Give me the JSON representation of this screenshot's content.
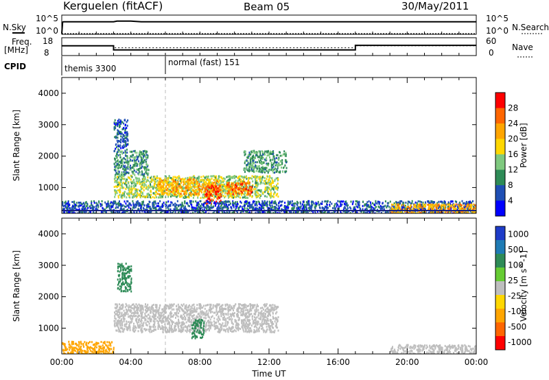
{
  "header": {
    "station": "Kerguelen (fitACF)",
    "beam": "Beam 05",
    "date": "30/May/2011"
  },
  "nsky_panel": {
    "left_label": "N.Sky",
    "right_label": "N.Search",
    "left_ticks": [
      "10^5",
      "10^0"
    ],
    "right_ticks": [
      "10^5",
      "10^0"
    ]
  },
  "freq_panel": {
    "left_label_1": "Freq.",
    "left_label_2": "[MHz]",
    "right_label": "Nave",
    "left_ticks": [
      "18",
      "8"
    ],
    "right_ticks": [
      "60",
      "0"
    ]
  },
  "cpid_panel": {
    "label": "CPID",
    "modes": [
      {
        "name": "themis 3300",
        "start_hour": 0
      },
      {
        "name": "normal (fast) 151",
        "start_hour": 6
      }
    ]
  },
  "colors": {
    "power_scale": [
      "#0000ff",
      "#1f4fb4",
      "#2e8b57",
      "#7fc97f",
      "#ffd700",
      "#ffa500",
      "#ff6600",
      "#ff0000"
    ],
    "velocity_scale": [
      "#1e3cc8",
      "#1f7bb4",
      "#2e8b57",
      "#66cc33",
      "#bebebe",
      "#ffd700",
      "#ffa500",
      "#ff6600",
      "#ff0000"
    ],
    "ground_scatter": "#bebebe"
  },
  "chart_data": [
    {
      "type": "line",
      "name": "nsky",
      "x_range": [
        0,
        24
      ],
      "series": [
        {
          "name": "N.Sky",
          "x": [
            0.0,
            0.05,
            0.1,
            3.0,
            3.2,
            4.0,
            4.6,
            8.0,
            12.0,
            17.0,
            24.0
          ],
          "y": [
            0.0,
            3.5,
            3.6,
            3.6,
            3.8,
            3.8,
            3.6,
            3.6,
            3.6,
            3.6,
            3.6
          ]
        },
        {
          "name": "N.Search",
          "x": [
            0,
            24
          ],
          "y": [
            0,
            0
          ]
        }
      ]
    },
    {
      "type": "line",
      "name": "frequency",
      "x_range": [
        0,
        24
      ],
      "ylim": [
        8,
        18
      ],
      "series": [
        {
          "name": "Freq.",
          "x": [
            0,
            3.0,
            3.0,
            17.0,
            17.0,
            24.0
          ],
          "y": [
            13.5,
            13.5,
            11.0,
            11.0,
            13.8,
            13.8
          ]
        },
        {
          "name": "Nave",
          "x": [
            0,
            3.0,
            3.0,
            17.0,
            17.0,
            24.0
          ],
          "y": [
            33,
            33,
            26,
            26,
            33,
            33
          ]
        }
      ]
    },
    {
      "type": "heatmap",
      "name": "power",
      "xlabel": "",
      "ylabel": "Slant Range [km]",
      "xlim": [
        0,
        24
      ],
      "ylim": [
        180,
        4500
      ],
      "y_ticks": [
        "1000",
        "2000",
        "3000",
        "4000"
      ],
      "colorbar": {
        "label": "Power [dB]",
        "ticks": [
          "4",
          "8",
          "12",
          "16",
          "20",
          "24",
          "28"
        ],
        "range": [
          0,
          30
        ]
      },
      "regions": [
        {
          "x": [
            3.0,
            3.8
          ],
          "y": [
            2200,
            3200
          ],
          "value": 6
        },
        {
          "x": [
            3.0,
            5.0
          ],
          "y": [
            1400,
            2200
          ],
          "value": 10
        },
        {
          "x": [
            3.0,
            12.5
          ],
          "y": [
            700,
            1400
          ],
          "value": 14
        },
        {
          "x": [
            5.5,
            9.0
          ],
          "y": [
            800,
            1300
          ],
          "value": 20
        },
        {
          "x": [
            8.2,
            9.2
          ],
          "y": [
            500,
            1100
          ],
          "value": 26
        },
        {
          "x": [
            9.5,
            11.0
          ],
          "y": [
            800,
            1200
          ],
          "value": 24
        },
        {
          "x": [
            10.5,
            13.0
          ],
          "y": [
            1500,
            2200
          ],
          "value": 10
        },
        {
          "x": [
            0,
            24
          ],
          "y": [
            200,
            600
          ],
          "value": 6
        },
        {
          "x": [
            19.0,
            24.0
          ],
          "y": [
            200,
            500
          ],
          "value": 20
        }
      ]
    },
    {
      "type": "heatmap",
      "name": "velocity",
      "xlabel": "Time UT",
      "ylabel": "Slant Range [km]",
      "xlim": [
        0,
        24
      ],
      "ylim": [
        180,
        4500
      ],
      "x_ticks": [
        "00:00",
        "04:00",
        "08:00",
        "12:00",
        "16:00",
        "20:00",
        "00:00"
      ],
      "y_ticks": [
        "1000",
        "2000",
        "3000",
        "4000"
      ],
      "colorbar": {
        "label": "Velocity [m s^-1]",
        "ticks": [
          "1000",
          "500",
          "100",
          "25",
          "-25",
          "-100",
          "-500",
          "-1000"
        ]
      },
      "regions": [
        {
          "x": [
            3.0,
            12.5
          ],
          "y": [
            900,
            1800
          ],
          "value": 0
        },
        {
          "x": [
            3.2,
            4.0
          ],
          "y": [
            2200,
            3100
          ],
          "value": 100
        },
        {
          "x": [
            7.5,
            8.2
          ],
          "y": [
            700,
            1300
          ],
          "value": 100
        },
        {
          "x": [
            0,
            3.0
          ],
          "y": [
            200,
            600
          ],
          "value": -100
        },
        {
          "x": [
            19.0,
            24.0
          ],
          "y": [
            200,
            500
          ],
          "value": 0
        }
      ]
    }
  ]
}
